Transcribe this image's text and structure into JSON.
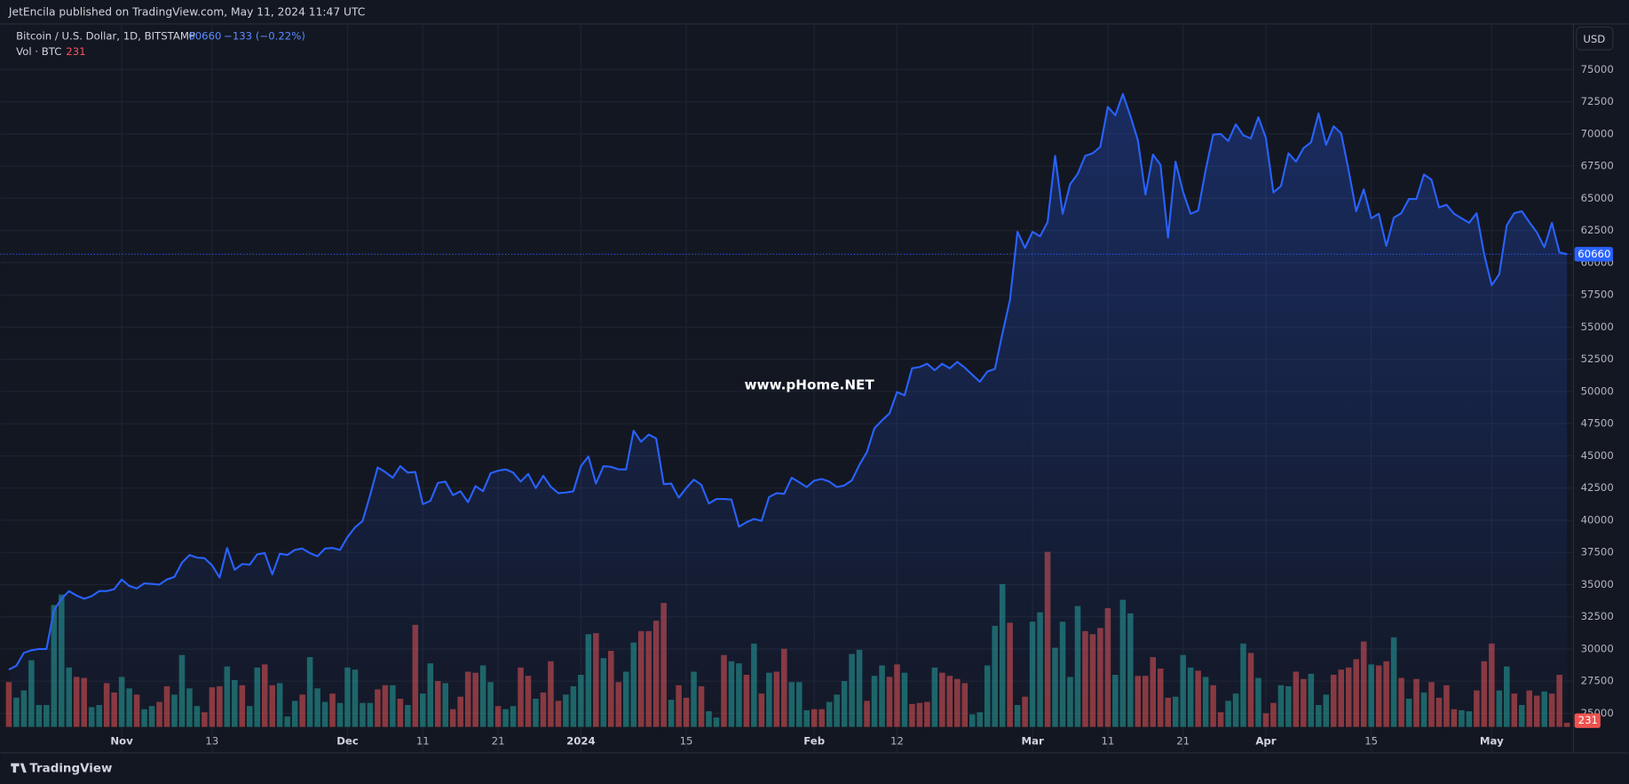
{
  "header": {
    "published": "JetEncila published on TradingView.com, May 11, 2024 11:47 UTC"
  },
  "footer": {
    "brand": "TradingView"
  },
  "watermark": "www.pHome.NET",
  "chart_data": {
    "type": "line",
    "title": "Bitcoin / U.S. Dollar, 1D, BITSTAMP",
    "change": "−133 (−0.22%)",
    "currency": "USD",
    "color": "#2962ff",
    "grid": true,
    "categories": [
      null,
      null,
      null,
      null,
      null,
      null,
      null,
      null,
      null,
      null,
      null,
      null,
      null,
      null,
      null,
      "Nov",
      null,
      null,
      null,
      null,
      null,
      null,
      null,
      null,
      null,
      null,
      null,
      "13",
      null,
      null,
      null,
      null,
      null,
      null,
      null,
      null,
      null,
      null,
      null,
      null,
      null,
      null,
      null,
      null,
      null,
      "Dec",
      null,
      null,
      null,
      null,
      null,
      null,
      null,
      null,
      null,
      "11",
      null,
      null,
      null,
      null,
      null,
      null,
      null,
      null,
      null,
      "21",
      null,
      null,
      null,
      null,
      null,
      null,
      null,
      null,
      null,
      null,
      "2024",
      null,
      null,
      null,
      null,
      null,
      null,
      null,
      null,
      null,
      null,
      null,
      null,
      null,
      "15",
      null,
      null,
      null,
      null,
      null,
      null,
      null,
      null,
      null,
      null,
      null,
      null,
      null,
      null,
      null,
      null,
      "Feb",
      null,
      null,
      null,
      null,
      null,
      null,
      null,
      null,
      null,
      null,
      "12",
      null,
      null,
      null,
      null,
      null,
      null,
      null,
      null,
      null,
      null,
      null,
      null,
      null,
      null,
      null,
      null,
      null,
      "Mar",
      null,
      null,
      null,
      null,
      null,
      null,
      null,
      null,
      null,
      "11",
      null,
      null,
      null,
      null,
      null,
      null,
      null,
      null,
      null,
      "21",
      null,
      null,
      null,
      null,
      null,
      null,
      null,
      null,
      null,
      null,
      "Apr",
      null,
      null,
      null,
      null,
      null,
      null,
      null,
      null,
      null,
      null,
      null,
      null,
      null,
      "15",
      null,
      null,
      null,
      null,
      null,
      null,
      null,
      null,
      null,
      null,
      null,
      null,
      null,
      null,
      null,
      "May",
      null,
      null,
      null,
      null,
      null,
      null,
      null,
      null,
      null,
      null
    ],
    "values": [
      28400,
      28700,
      29700,
      29900,
      30000,
      30000,
      33000,
      33900,
      34500,
      34150,
      33900,
      34100,
      34500,
      34500,
      34650,
      35400,
      34900,
      34700,
      35100,
      35050,
      35000,
      35400,
      35600,
      36700,
      37300,
      37100,
      37050,
      36500,
      35550,
      37850,
      36150,
      36600,
      36550,
      37350,
      37450,
      35800,
      37400,
      37300,
      37700,
      37800,
      37450,
      37200,
      37800,
      37850,
      37700,
      38700,
      39450,
      39950,
      41950,
      44100,
      43750,
      43300,
      44200,
      43700,
      43750,
      41250,
      41500,
      42900,
      43000,
      41950,
      42250,
      41400,
      42650,
      42250,
      43650,
      43850,
      43950,
      43700,
      43000,
      43600,
      42500,
      43450,
      42600,
      42100,
      42150,
      42250,
      44200,
      44950,
      42850,
      44200,
      44150,
      43950,
      43950,
      46950,
      46100,
      46650,
      46350,
      42800,
      42850,
      41750,
      42500,
      43150,
      42750,
      41300,
      41650,
      41650,
      41600,
      39500,
      39850,
      40100,
      39950,
      41800,
      42100,
      42050,
      43300,
      42950,
      42580,
      43080,
      43200,
      43000,
      42580,
      42700,
      43100,
      44300,
      45300,
      47150,
      47750,
      48300,
      49950,
      49700,
      51800,
      51900,
      52150,
      51650,
      52150,
      51800,
      52300,
      51850,
      51300,
      50750,
      51550,
      51750,
      54500,
      57100,
      62400,
      61150,
      62400,
      62050,
      63150,
      68300,
      63800,
      66100,
      66900,
      68300,
      68500,
      69000,
      72100,
      71450,
      73100,
      71400,
      69500,
      65300,
      68400,
      67600,
      61950,
      67850,
      65500,
      63800,
      64050,
      67200,
      69950,
      70000,
      69450,
      70750,
      69900,
      69650,
      71300,
      69700,
      65450,
      65950,
      68500,
      67850,
      68900,
      69350,
      71600,
      69150,
      70600,
      70050,
      67150,
      64000,
      65700,
      63450,
      63800,
      61300,
      63500,
      63850,
      64950,
      64950,
      66850,
      66450,
      64300,
      64500,
      63800,
      63450,
      63100,
      63850,
      60650,
      58250,
      59100,
      62900,
      63850,
      64000,
      63150,
      62350,
      61200,
      63100,
      60800,
      60660
    ],
    "ylim": [
      23710,
      78468
    ],
    "yticks": [
      25000,
      27500,
      30000,
      32500,
      35000,
      37500,
      40000,
      42500,
      45000,
      47500,
      50000,
      52500,
      55000,
      57500,
      60000,
      62500,
      65000,
      67500,
      70000,
      72500,
      75000
    ],
    "volume": {
      "name": "Vol · BTC",
      "ylim": [
        0,
        10000
      ],
      "values": [
        2537,
        1652,
        2065,
        3776,
        1239,
        1239,
        6903,
        7493,
        3363,
        2832,
        2773,
        1121,
        1239,
        2478,
        1947,
        2832,
        2183,
        1829,
        1003,
        1180,
        1416,
        2301,
        1829,
        4071,
        2183,
        1180,
        826,
        2242,
        2301,
        3422,
        2655,
        2360,
        1180,
        3363,
        3540,
        2360,
        2478,
        590,
        1475,
        1829,
        3953,
        2183,
        1416,
        1888,
        1357,
        3363,
        3245,
        1357,
        1357,
        2124,
        2360,
        2360,
        1593,
        1239,
        5782,
        1888,
        3599,
        2596,
        2478,
        1003,
        1711,
        3127,
        3068,
        3481,
        2537,
        1180,
        1003,
        1180,
        3363,
        2891,
        1593,
        1947,
        3717,
        1475,
        1829,
        2301,
        2950,
        5251,
        5310,
        3894,
        4307,
        2537,
        3127,
        4779,
        5428,
        5428,
        6018,
        7021,
        1534,
        2360,
        1652,
        3127,
        2301,
        885,
        531,
        4071,
        3717,
        3599,
        2950,
        4720,
        1888,
        3068,
        3127,
        4425,
        2537,
        2537,
        944,
        1003,
        1003,
        1416,
        1829,
        2596,
        4130,
        4366,
        1475,
        2891,
        3481,
        2832,
        3540,
        3068,
        1298,
        1357,
        1416,
        3363,
        3068,
        2891,
        2714,
        2478,
        708,
        826,
        3481,
        5723,
        8083,
        5900,
        1239,
        1711,
        5959,
        6490,
        9912,
        4484,
        5959,
        2832,
        6844,
        5428,
        5251,
        5605,
        6726,
        2950,
        7198,
        6431,
        2891,
        2891,
        3953,
        3304,
        1652,
        1711,
        4071,
        3363,
        3186,
        2832,
        2360,
        826,
        1475,
        1888,
        4720,
        4189,
        2773,
        767,
        1357,
        2360,
        2301,
        3127,
        2714,
        3009,
        1239,
        1829,
        2950,
        3245,
        3363,
        3835,
        4838,
        3540,
        3481,
        3717,
        5074,
        2773,
        1593,
        2714,
        1947,
        2537,
        1652,
        2360,
        1003,
        944,
        885,
        2065,
        3717,
        4720,
        2065,
        3422,
        1888,
        1239,
        2065,
        1770,
        2006,
        1888,
        2950,
        231
      ],
      "colors": [
        "#ef5350",
        "#26a69a",
        "#26a69a",
        "#26a69a",
        "#26a69a",
        "#26a69a",
        "#26a69a",
        "#26a69a",
        "#26a69a",
        "#ef5350",
        "#ef5350",
        "#26a69a",
        "#26a69a",
        "#ef5350",
        "#ef5350",
        "#26a69a",
        "#26a69a",
        "#ef5350",
        "#26a69a",
        "#26a69a",
        "#ef5350",
        "#ef5350",
        "#26a69a",
        "#26a69a",
        "#26a69a",
        "#26a69a",
        "#ef5350",
        "#ef5350",
        "#ef5350",
        "#26a69a",
        "#26a69a",
        "#ef5350",
        "#26a69a",
        "#26a69a",
        "#ef5350",
        "#ef5350",
        "#26a69a",
        "#26a69a",
        "#26a69a",
        "#ef5350",
        "#26a69a",
        "#26a69a",
        "#26a69a",
        "#ef5350",
        "#26a69a",
        "#26a69a",
        "#26a69a",
        "#26a69a",
        "#26a69a",
        "#ef5350",
        "#ef5350",
        "#26a69a",
        "#ef5350",
        "#26a69a",
        "#ef5350",
        "#26a69a",
        "#26a69a",
        "#ef5350",
        "#26a69a",
        "#ef5350",
        "#ef5350",
        "#ef5350",
        "#ef5350",
        "#26a69a",
        "#26a69a",
        "#ef5350",
        "#26a69a",
        "#26a69a",
        "#ef5350",
        "#ef5350",
        "#26a69a",
        "#ef5350",
        "#ef5350",
        "#ef5350",
        "#26a69a",
        "#26a69a",
        "#26a69a",
        "#26a69a",
        "#ef5350",
        "#26a69a",
        "#ef5350",
        "#ef5350",
        "#26a69a",
        "#26a69a",
        "#ef5350",
        "#ef5350",
        "#ef5350",
        "#ef5350",
        "#26a69a",
        "#ef5350",
        "#ef5350",
        "#26a69a",
        "#ef5350",
        "#26a69a",
        "#26a69a",
        "#ef5350",
        "#26a69a",
        "#26a69a",
        "#ef5350",
        "#26a69a",
        "#ef5350",
        "#26a69a",
        "#ef5350",
        "#ef5350",
        "#26a69a",
        "#26a69a",
        "#26a69a",
        "#ef5350",
        "#ef5350",
        "#26a69a",
        "#26a69a",
        "#26a69a",
        "#26a69a",
        "#26a69a",
        "#ef5350",
        "#26a69a",
        "#26a69a",
        "#ef5350",
        "#ef5350",
        "#26a69a",
        "#ef5350",
        "#ef5350",
        "#ef5350",
        "#26a69a",
        "#ef5350",
        "#ef5350",
        "#ef5350",
        "#ef5350",
        "#26a69a",
        "#26a69a",
        "#26a69a",
        "#26a69a",
        "#26a69a",
        "#ef5350",
        "#26a69a",
        "#ef5350",
        "#26a69a",
        "#26a69a",
        "#ef5350",
        "#26a69a",
        "#26a69a",
        "#26a69a",
        "#26a69a",
        "#ef5350",
        "#ef5350",
        "#ef5350",
        "#ef5350",
        "#26a69a",
        "#26a69a",
        "#26a69a",
        "#ef5350",
        "#ef5350",
        "#ef5350",
        "#ef5350",
        "#ef5350",
        "#26a69a",
        "#26a69a",
        "#26a69a",
        "#ef5350",
        "#26a69a",
        "#ef5350",
        "#ef5350",
        "#26a69a",
        "#26a69a",
        "#26a69a",
        "#ef5350",
        "#26a69a",
        "#ef5350",
        "#ef5350",
        "#26a69a",
        "#26a69a",
        "#ef5350",
        "#ef5350",
        "#26a69a",
        "#26a69a",
        "#26a69a",
        "#ef5350",
        "#ef5350",
        "#ef5350",
        "#ef5350",
        "#ef5350",
        "#26a69a",
        "#ef5350",
        "#ef5350",
        "#26a69a",
        "#ef5350",
        "#26a69a",
        "#ef5350",
        "#26a69a",
        "#ef5350",
        "#ef5350",
        "#ef5350",
        "#ef5350",
        "#26a69a",
        "#26a69a",
        "#ef5350",
        "#ef5350",
        "#ef5350",
        "#26a69a",
        "#26a69a",
        "#ef5350",
        "#26a69a",
        "#ef5350",
        "#ef5350",
        "#26a69a",
        "#ef5350",
        "#ef5350",
        "#ef5350"
      ]
    }
  }
}
